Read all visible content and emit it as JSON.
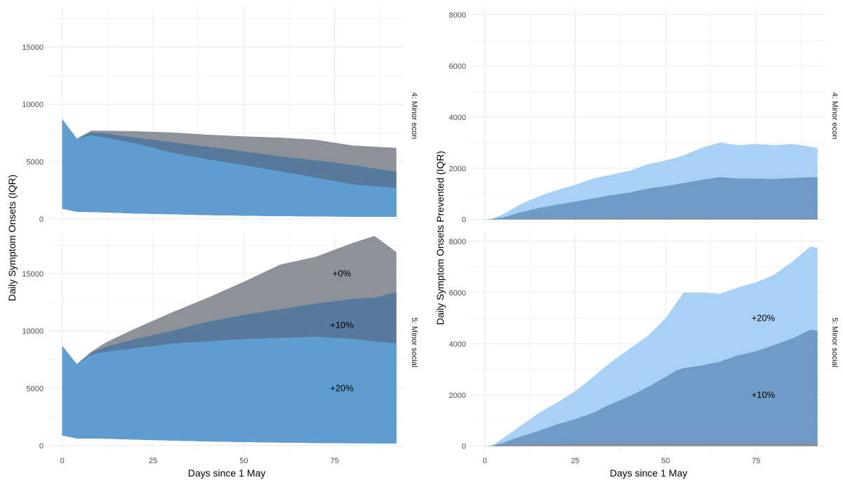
{
  "chart_data": [
    {
      "type": "area",
      "panel": "left-top",
      "strip": "4: Minor econ",
      "ylabel": "Daily Symptom Onsets (IQR)",
      "xlabel": "Days since 1 May",
      "xlim": [
        -4,
        94
      ],
      "xticks": [
        0,
        25,
        50,
        75
      ],
      "ylim": [
        -500,
        18500
      ],
      "yticks": [
        0,
        5000,
        10000,
        15000
      ],
      "grid": true,
      "colors": {
        "grey": "#7f8590",
        "dark": "#4d6f8f",
        "blue": "#5b9bd0"
      },
      "x": [
        0,
        4,
        8,
        12,
        20,
        30,
        40,
        50,
        60,
        70,
        80,
        92
      ],
      "bands": [
        {
          "name": "+0%",
          "color": "grey",
          "lo": [
            880,
            620,
            590,
            560,
            470,
            400,
            330,
            280,
            240,
            210,
            190,
            180
          ],
          "hi": [
            8700,
            7000,
            7700,
            7700,
            7650,
            7550,
            7350,
            7200,
            7100,
            6900,
            6400,
            6200
          ]
        },
        {
          "name": "+10%",
          "color": "dark",
          "lo": [
            880,
            620,
            590,
            560,
            470,
            400,
            330,
            280,
            240,
            210,
            190,
            180
          ],
          "hi": [
            8700,
            7000,
            7550,
            7450,
            7100,
            6700,
            6300,
            5900,
            5450,
            5100,
            4700,
            4100
          ]
        },
        {
          "name": "+20%",
          "color": "blue",
          "lo": [
            880,
            620,
            590,
            560,
            470,
            400,
            330,
            280,
            240,
            210,
            190,
            180
          ],
          "hi": [
            8700,
            7000,
            7300,
            7100,
            6600,
            5800,
            5200,
            4700,
            4150,
            3600,
            3000,
            2700
          ]
        }
      ]
    },
    {
      "type": "area",
      "panel": "left-bottom",
      "strip": "5: Minor social",
      "ylabel": "Daily Symptom Onsets (IQR)",
      "xlabel": "Days since 1 May",
      "xlim": [
        -4,
        94
      ],
      "xticks": [
        0,
        25,
        50,
        75
      ],
      "ylim": [
        -500,
        18500
      ],
      "yticks": [
        0,
        5000,
        10000,
        15000
      ],
      "grid": true,
      "annotations": [
        {
          "text": "+0%",
          "x": 77,
          "y": 15000
        },
        {
          "text": "+10%",
          "x": 77,
          "y": 10500
        },
        {
          "text": "+20%",
          "x": 77,
          "y": 5000
        }
      ],
      "x": [
        0,
        4,
        8,
        12,
        20,
        30,
        40,
        50,
        60,
        70,
        80,
        86,
        92
      ],
      "bands": [
        {
          "name": "+0%",
          "color": "grey",
          "lo": [
            880,
            620,
            620,
            600,
            520,
            430,
            360,
            300,
            260,
            220,
            200,
            190,
            180
          ],
          "hi": [
            8700,
            7100,
            8200,
            9000,
            10200,
            11600,
            12900,
            14300,
            15800,
            16500,
            17700,
            18300,
            16900
          ]
        },
        {
          "name": "+10%",
          "color": "dark",
          "lo": [
            880,
            620,
            620,
            600,
            520,
            430,
            360,
            300,
            260,
            220,
            200,
            190,
            180
          ],
          "hi": [
            8700,
            7100,
            8100,
            8600,
            9300,
            10000,
            10800,
            11400,
            11900,
            12400,
            12800,
            12900,
            13400
          ]
        },
        {
          "name": "+20%",
          "color": "blue",
          "lo": [
            880,
            620,
            620,
            600,
            520,
            430,
            360,
            300,
            260,
            220,
            200,
            190,
            180
          ],
          "hi": [
            8700,
            7100,
            7950,
            8200,
            8500,
            8900,
            9100,
            9300,
            9400,
            9500,
            9300,
            9100,
            8900
          ]
        }
      ]
    },
    {
      "type": "area",
      "panel": "right-top",
      "strip": "4: Minor econ",
      "ylabel": "Daily Symptom Onsets Prevented (IQR)",
      "xlabel": "Days since 1 May",
      "xlim": [
        -4,
        94
      ],
      "xticks": [
        0,
        25,
        50,
        75
      ],
      "ylim": [
        -200,
        8300
      ],
      "yticks": [
        0,
        2000,
        4000,
        6000,
        8000
      ],
      "grid": true,
      "colors": {
        "light": "#a7cff5",
        "dark": "#6c9cc9",
        "grey": "#8a8f96"
      },
      "x": [
        0,
        2,
        5,
        10,
        15,
        20,
        25,
        30,
        35,
        40,
        45,
        50,
        55,
        60,
        65,
        70,
        75,
        80,
        85,
        92
      ],
      "bands": [
        {
          "name": "+20%",
          "color": "light",
          "lo": [
            0,
            0,
            0,
            0,
            0,
            0,
            0,
            0,
            0,
            0,
            0,
            0,
            0,
            0,
            0,
            0,
            0,
            0,
            0,
            0
          ],
          "hi": [
            0,
            30,
            200,
            600,
            900,
            1150,
            1350,
            1600,
            1750,
            1900,
            2150,
            2300,
            2500,
            2800,
            3000,
            2900,
            2950,
            2900,
            2950,
            2800
          ]
        },
        {
          "name": "+10%",
          "color": "dark",
          "lo": [
            0,
            0,
            0,
            0,
            0,
            0,
            0,
            0,
            0,
            0,
            0,
            0,
            0,
            0,
            0,
            0,
            0,
            0,
            0,
            0
          ],
          "hi": [
            0,
            20,
            80,
            280,
            450,
            580,
            700,
            820,
            950,
            1050,
            1200,
            1300,
            1420,
            1550,
            1650,
            1600,
            1600,
            1580,
            1620,
            1650
          ]
        },
        {
          "name": "+0%",
          "color": "grey",
          "lo": [
            0,
            0,
            0,
            0,
            0,
            0,
            0,
            0,
            0,
            0,
            0,
            0,
            0,
            0,
            0,
            0,
            0,
            0,
            0,
            0
          ],
          "hi": [
            0,
            5,
            15,
            30,
            40,
            45,
            50,
            55,
            55,
            60,
            60,
            60,
            60,
            65,
            65,
            65,
            65,
            65,
            65,
            65
          ]
        }
      ]
    },
    {
      "type": "area",
      "panel": "right-bottom",
      "strip": "5: Minor social",
      "ylabel": "Daily Symptom Onsets Prevented (IQR)",
      "xlabel": "Days since 1 May",
      "xlim": [
        -4,
        94
      ],
      "xticks": [
        0,
        25,
        50,
        75
      ],
      "ylim": [
        -200,
        8300
      ],
      "yticks": [
        0,
        2000,
        4000,
        6000,
        8000
      ],
      "grid": true,
      "annotations": [
        {
          "text": "+20%",
          "x": 77,
          "y": 5000
        },
        {
          "text": "+10%",
          "x": 77,
          "y": 2000
        }
      ],
      "x": [
        0,
        2,
        5,
        10,
        15,
        20,
        25,
        30,
        35,
        40,
        45,
        50,
        53,
        55,
        60,
        65,
        70,
        75,
        80,
        85,
        90,
        92
      ],
      "bands": [
        {
          "name": "+20%",
          "color": "light",
          "lo": [
            0,
            0,
            0,
            0,
            0,
            0,
            0,
            0,
            0,
            0,
            0,
            0,
            0,
            0,
            0,
            0,
            0,
            0,
            0,
            0,
            0,
            0
          ],
          "hi": [
            0,
            20,
            300,
            800,
            1300,
            1700,
            2150,
            2700,
            3300,
            3800,
            4300,
            5000,
            5600,
            6000,
            6000,
            5950,
            6200,
            6400,
            6700,
            7200,
            7800,
            7750
          ]
        },
        {
          "name": "+10%",
          "color": "dark",
          "lo": [
            0,
            0,
            0,
            0,
            0,
            0,
            0,
            0,
            0,
            0,
            0,
            0,
            0,
            0,
            0,
            0,
            0,
            0,
            0,
            0,
            0,
            0
          ],
          "hi": [
            0,
            10,
            120,
            380,
            600,
            850,
            1050,
            1300,
            1650,
            1950,
            2300,
            2700,
            2950,
            3050,
            3150,
            3300,
            3550,
            3700,
            3950,
            4200,
            4550,
            4500
          ]
        },
        {
          "name": "+0%",
          "color": "grey",
          "lo": [
            0,
            0,
            0,
            0,
            0,
            0,
            0,
            0,
            0,
            0,
            0,
            0,
            0,
            0,
            0,
            0,
            0,
            0,
            0,
            0,
            0,
            0
          ],
          "hi": [
            0,
            5,
            30,
            70,
            90,
            100,
            110,
            115,
            120,
            120,
            120,
            120,
            120,
            120,
            120,
            120,
            120,
            120,
            120,
            120,
            120,
            120
          ]
        }
      ]
    }
  ],
  "palette": {
    "left": {
      "grey": "#8c919a",
      "dark": "#57799c",
      "blue": "#5f9ccf"
    },
    "right": {
      "light": "#a9d0f5",
      "dark": "#6e9cc7",
      "grey": "#8a8f96"
    },
    "grid": "#ebebeb"
  }
}
